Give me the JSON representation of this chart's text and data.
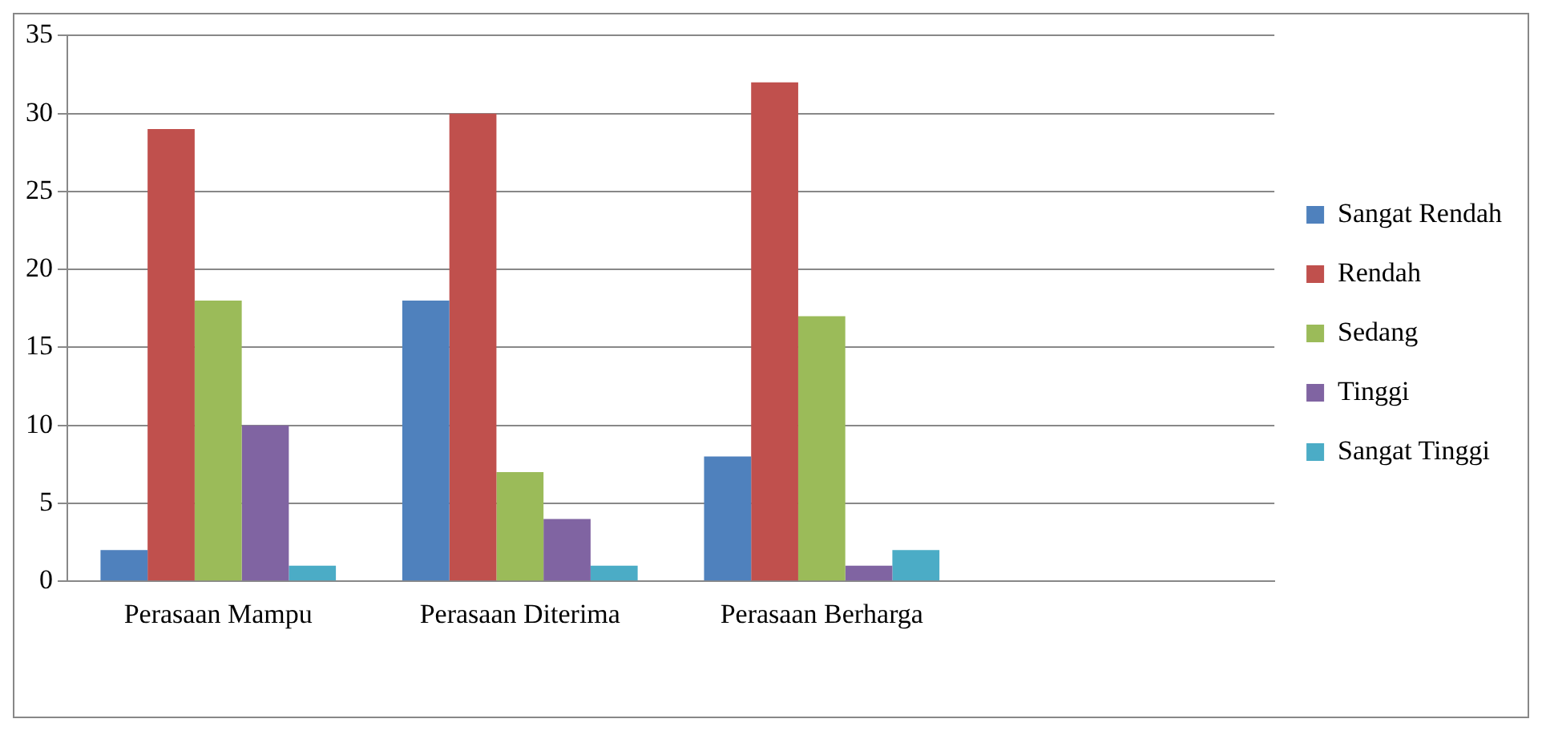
{
  "chart_data": {
    "type": "bar",
    "categories": [
      "Perasaan Mampu",
      "Perasaan Diterima",
      "Perasaan Berharga",
      null
    ],
    "series": [
      {
        "name": "Sangat Rendah",
        "color": "#4f81bd",
        "values": [
          2,
          18,
          8,
          null
        ]
      },
      {
        "name": "Rendah",
        "color": "#c0504d",
        "values": [
          29,
          30,
          32,
          null
        ]
      },
      {
        "name": "Sedang",
        "color": "#9bbb59",
        "values": [
          18,
          7,
          17,
          null
        ]
      },
      {
        "name": "Tinggi",
        "color": "#8064a2",
        "values": [
          10,
          4,
          1,
          null
        ]
      },
      {
        "name": "Sangat Tinggi",
        "color": "#4bacc6",
        "values": [
          1,
          1,
          2,
          null
        ]
      }
    ],
    "ylim": [
      0,
      35
    ],
    "yticks": [
      0,
      5,
      10,
      15,
      20,
      25,
      30,
      35
    ],
    "grid": "y",
    "legend": "right"
  }
}
